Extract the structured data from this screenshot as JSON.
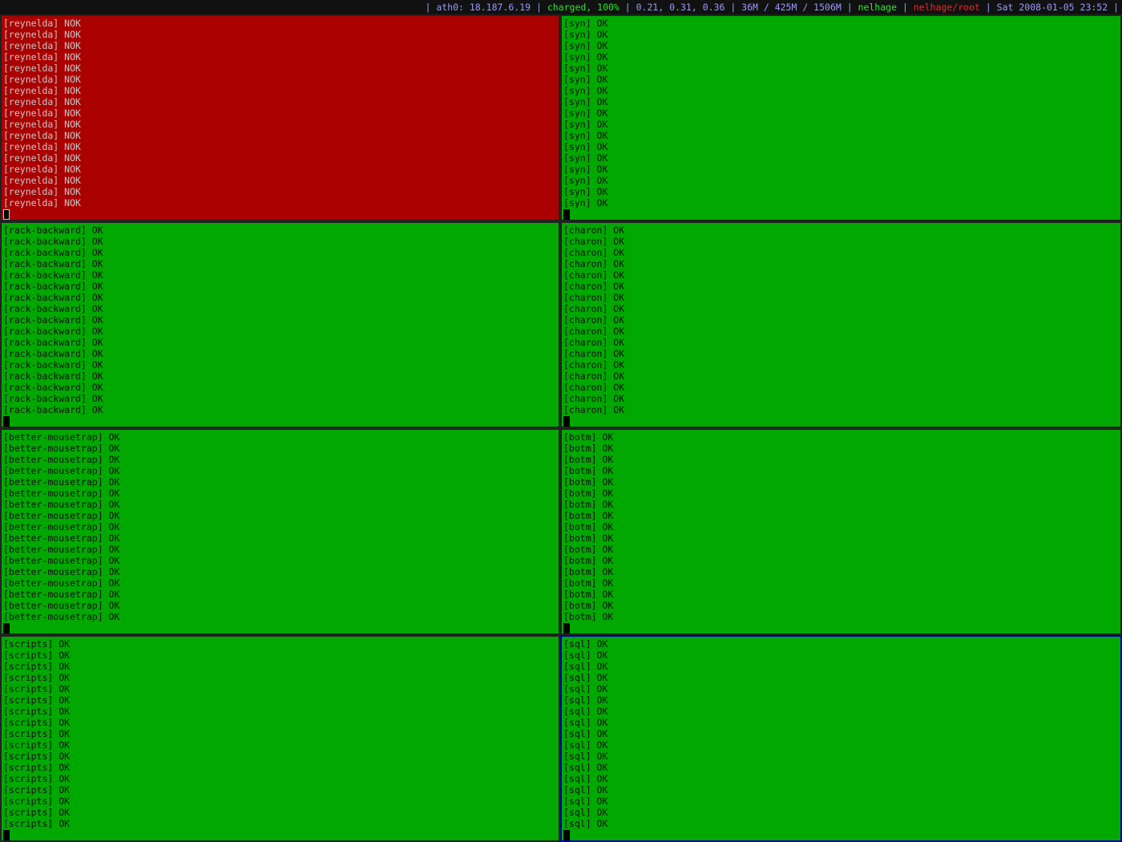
{
  "status_bar": {
    "segments": [
      {
        "text": "| ath0: 18.187.6.19 | ",
        "color": "#9a9aff"
      },
      {
        "text": "charged, 100%",
        "color": "#22ee22"
      },
      {
        "text": " | 0.21, 0.31, 0.36 | 36M / 425M / 1506M | ",
        "color": "#9a9aff"
      },
      {
        "text": "nelhage",
        "color": "#22ee22"
      },
      {
        "text": " | ",
        "color": "#9a9aff"
      },
      {
        "text": "nelhage/root",
        "color": "#ff2020"
      },
      {
        "text": " | Sat 2008-01-05 23:52 |",
        "color": "#9a9aff"
      }
    ]
  },
  "colors": {
    "ok_bg": "#00a800",
    "nok_bg": "#aa0000",
    "focus_border": "#0000aa"
  },
  "panes": [
    {
      "name": "reynelda",
      "status": "NOK",
      "line_count": 17
    },
    {
      "name": "syn",
      "status": "OK",
      "line_count": 17
    },
    {
      "name": "rack-backward",
      "status": "OK",
      "line_count": 17
    },
    {
      "name": "charon",
      "status": "OK",
      "line_count": 17
    },
    {
      "name": "better-mousetrap",
      "status": "OK",
      "line_count": 17
    },
    {
      "name": "botm",
      "status": "OK",
      "line_count": 17
    },
    {
      "name": "scripts",
      "status": "OK",
      "line_count": 17
    },
    {
      "name": "sql",
      "status": "OK",
      "line_count": 17,
      "focused": true
    }
  ]
}
